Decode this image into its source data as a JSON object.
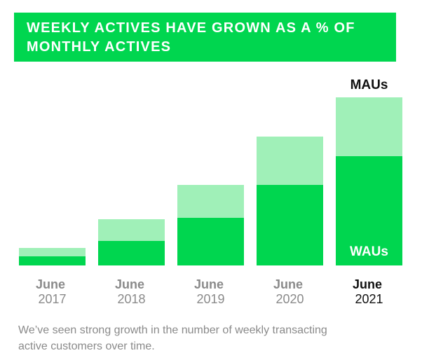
{
  "chart_data": {
    "type": "bar",
    "title": "WEEKLY ACTIVES HAVE GROWN AS A % OF MONTHLY ACTIVES",
    "caption": "We’ve seen strong growth in the number of weekly transacting active customers over time.",
    "categories": [
      "June 2017",
      "June 2018",
      "June 2019",
      "June 2020",
      "June 2021"
    ],
    "series": [
      {
        "name": "MAUs",
        "color": "#a0f0b8",
        "values": [
          25,
          66,
          115,
          184,
          240
        ]
      },
      {
        "name": "WAUs",
        "color": "#00d64f",
        "values": [
          13,
          35,
          68,
          115,
          156
        ]
      }
    ],
    "ylim": [
      0,
      240
    ],
    "highlight_index": 4
  }
}
